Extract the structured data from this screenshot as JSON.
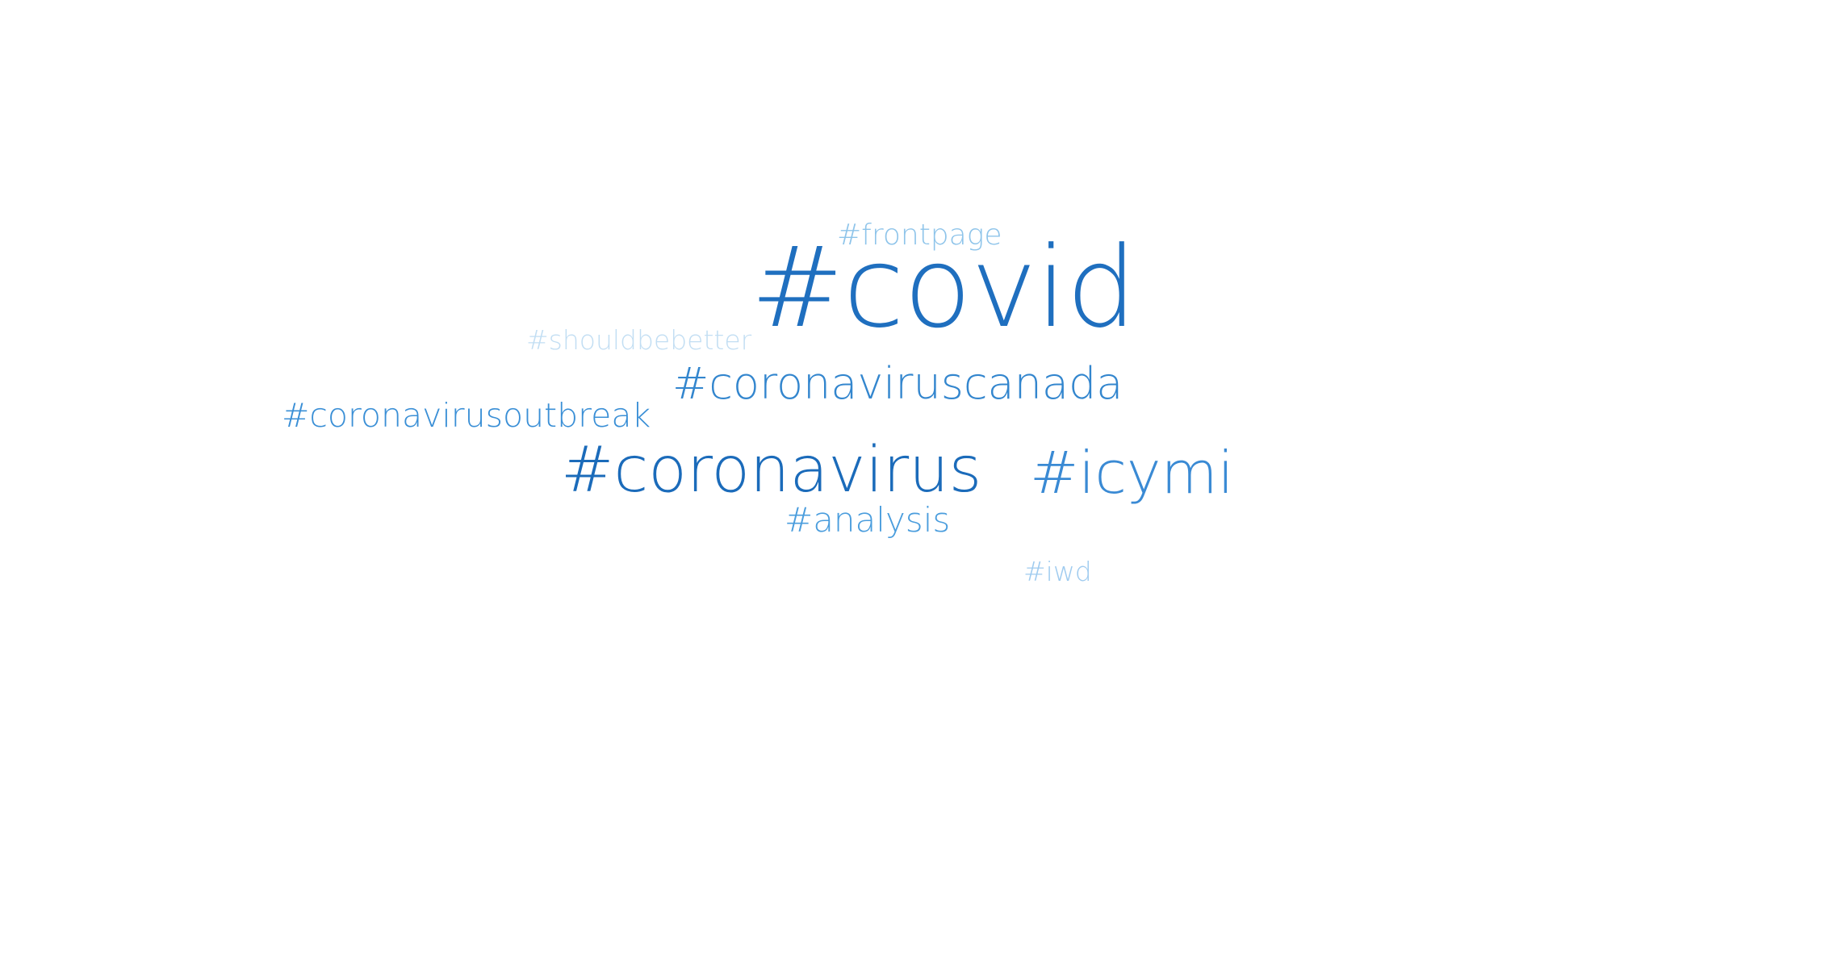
{
  "word_cloud": {
    "words": [
      {
        "id": "covid",
        "text": "#covid",
        "color": "#1f6fbf"
      },
      {
        "id": "frontpage",
        "text": "#frontpage",
        "color": "#8ec4ea"
      },
      {
        "id": "shouldbebetter",
        "text": "#shouldbebetter",
        "color": "#c2def3"
      },
      {
        "id": "coronaviruscanada",
        "text": "#coronaviruscanada",
        "color": "#3386ce"
      },
      {
        "id": "coronavirusoutbreak",
        "text": "#coronavirusoutbreak",
        "color": "#3a8fd6"
      },
      {
        "id": "coronavirus",
        "text": "#coronavirus",
        "color": "#1b6bba"
      },
      {
        "id": "icymi",
        "text": "#icymi",
        "color": "#3a8ad4"
      },
      {
        "id": "analysis",
        "text": "#analysis",
        "color": "#4a9ddd"
      },
      {
        "id": "iwd",
        "text": "#iwd",
        "color": "#9fcbef"
      }
    ]
  }
}
